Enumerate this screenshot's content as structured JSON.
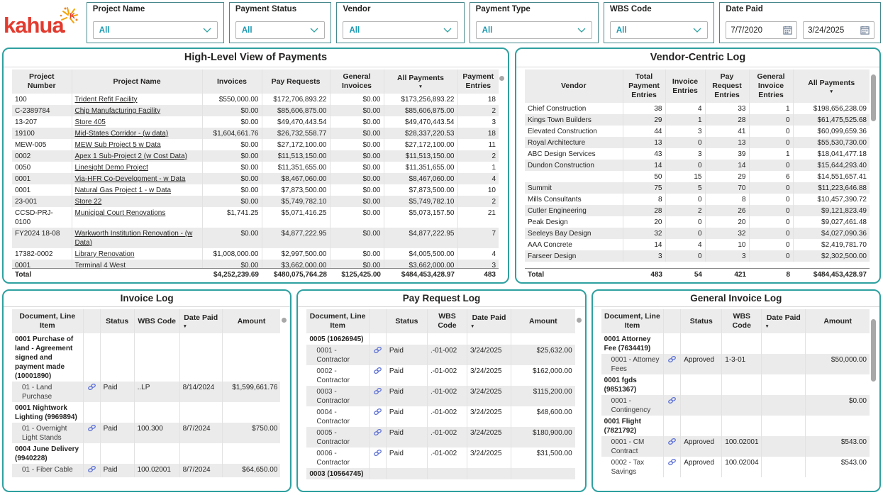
{
  "brand": {
    "logo_text": "kahua"
  },
  "colors": {
    "accent_teal": "#2FA0A0",
    "value_teal": "#1899B2",
    "link_blue": "#5B6FD6",
    "logo_red": "#E23A2E",
    "logo_orange": "#F5A300"
  },
  "filters": {
    "project_name": {
      "label": "Project Name",
      "value": "All"
    },
    "payment_status": {
      "label": "Payment Status",
      "value": "All"
    },
    "vendor": {
      "label": "Vendor",
      "value": "All"
    },
    "payment_type": {
      "label": "Payment Type",
      "value": "All"
    },
    "wbs_code": {
      "label": "WBS Code",
      "value": "All"
    },
    "date_paid": {
      "label": "Date Paid",
      "start": "7/7/2020",
      "end": "3/24/2025"
    }
  },
  "high_level": {
    "title": "High-Level View of Payments",
    "columns": [
      "Project Number",
      "Project Name",
      "Invoices",
      "Pay Requests",
      "General Invoices",
      "All Payments",
      "Payment Entries"
    ],
    "rows": [
      [
        "100",
        "Trident Refit Facility",
        "$550,000.00",
        "$172,706,893.22",
        "$0.00",
        "$173,256,893.22",
        "18"
      ],
      [
        "C-2389784",
        "Chip Manufacturing Facility",
        "$0.00",
        "$85,606,875.00",
        "$0.00",
        "$85,606,875.00",
        "2"
      ],
      [
        "13-207",
        "Store 405",
        "$0.00",
        "$49,470,443.54",
        "$0.00",
        "$49,470,443.54",
        "3"
      ],
      [
        "19100",
        "Mid-States Corridor - (w data)",
        "$1,604,661.76",
        "$26,732,558.77",
        "$0.00",
        "$28,337,220.53",
        "18"
      ],
      [
        "MEW-005",
        "MEW Sub Project 5 w Data",
        "$0.00",
        "$27,172,100.00",
        "$0.00",
        "$27,172,100.00",
        "11"
      ],
      [
        "0002",
        "Apex 1 Sub-Project 2 (w Cost Data)",
        "$0.00",
        "$11,513,150.00",
        "$0.00",
        "$11,513,150.00",
        "2"
      ],
      [
        "0050",
        "Linesight Demo Project",
        "$0.00",
        "$11,351,655.00",
        "$0.00",
        "$11,351,655.00",
        "1"
      ],
      [
        "0001",
        "Via-HFR Co-Development - w Data",
        "$0.00",
        "$8,467,060.00",
        "$0.00",
        "$8,467,060.00",
        "4"
      ],
      [
        "0001",
        "Natural Gas Project 1 - w Data",
        "$0.00",
        "$7,873,500.00",
        "$0.00",
        "$7,873,500.00",
        "10"
      ],
      [
        "23-001",
        "Store 22",
        "$0.00",
        "$5,749,782.10",
        "$0.00",
        "$5,749,782.10",
        "2"
      ],
      [
        "CCSD-PRJ-0100",
        "Municipal Court Renovations",
        "$1,741.25",
        "$5,071,416.25",
        "$0.00",
        "$5,073,157.50",
        "21"
      ],
      [
        "FY2024 18-08",
        "Warkworth Institution Renovation - (w Data)",
        "$0.00",
        "$4,877,222.95",
        "$0.00",
        "$4,877,222.95",
        "7"
      ],
      [
        "17382-0002",
        "Library Renovation",
        "$1,008,000.00",
        "$2,997,500.00",
        "$0.00",
        "$4,005,500.00",
        "4"
      ],
      [
        "0001",
        "Terminal 4 West",
        "$0.00",
        "$3,662,000.00",
        "$0.00",
        "$3,662,000.00",
        "3"
      ]
    ],
    "total": [
      "Total",
      "",
      "$4,252,239.69",
      "$480,075,764.28",
      "$125,425.00",
      "$484,453,428.97",
      "483"
    ]
  },
  "vendor_log": {
    "title": "Vendor-Centric Log",
    "columns": [
      "Vendor",
      "Total Payment Entries",
      "Invoice Entries",
      "Pay Request Entries",
      "General Invoice Entries",
      "All Payments"
    ],
    "rows": [
      [
        "Chief Construction",
        "38",
        "4",
        "33",
        "1",
        "$198,656,238.09"
      ],
      [
        "Kings Town Builders",
        "29",
        "1",
        "28",
        "0",
        "$61,475,525.68"
      ],
      [
        "Elevated Construction",
        "44",
        "3",
        "41",
        "0",
        "$60,099,659.36"
      ],
      [
        "Royal Architecture",
        "13",
        "0",
        "13",
        "0",
        "$55,530,730.00"
      ],
      [
        "ABC Design Services",
        "43",
        "3",
        "39",
        "1",
        "$18,041,477.18"
      ],
      [
        "Dundon Construction",
        "14",
        "0",
        "14",
        "0",
        "$15,644,293.40"
      ],
      [
        "",
        "50",
        "15",
        "29",
        "6",
        "$14,551,657.41"
      ],
      [
        "Summit",
        "75",
        "5",
        "70",
        "0",
        "$11,223,646.88"
      ],
      [
        "Mills Consultants",
        "8",
        "0",
        "8",
        "0",
        "$10,457,390.72"
      ],
      [
        "Cutler Engineering",
        "28",
        "2",
        "26",
        "0",
        "$9,121,823.49"
      ],
      [
        "Peak Design",
        "20",
        "0",
        "20",
        "0",
        "$9,027,461.48"
      ],
      [
        "Seeleys Bay Design",
        "32",
        "0",
        "32",
        "0",
        "$4,027,090.36"
      ],
      [
        "AAA Concrete",
        "14",
        "4",
        "10",
        "0",
        "$2,419,781.70"
      ],
      [
        "Farseer Design",
        "3",
        "0",
        "3",
        "0",
        "$2,302,500.00"
      ]
    ],
    "total": [
      "Total",
      "483",
      "54",
      "421",
      "8",
      "$484,453,428.97"
    ]
  },
  "invoice_log": {
    "title": "Invoice Log",
    "columns": [
      "Document, Line Item",
      "",
      "Status",
      "WBS Code",
      "Date Paid",
      "Amount"
    ],
    "rows": [
      {
        "t": "g",
        "c": [
          "0001 Purchase of land - Agreement signed and payment made (10001890)",
          "",
          "",
          "",
          "",
          ""
        ]
      },
      {
        "t": "d",
        "c": [
          "01 - Land Purchase",
          "link-icon",
          "Paid",
          "..LP",
          "8/14/2024",
          "$1,599,661.76"
        ]
      },
      {
        "t": "g",
        "c": [
          "0001 Nightwork Lighting (9969894)",
          "",
          "",
          "",
          "",
          ""
        ]
      },
      {
        "t": "d",
        "c": [
          "01 - Overnight Light Stands",
          "link-icon",
          "Paid",
          "100.300",
          "8/7/2024",
          "$750.00"
        ]
      },
      {
        "t": "g",
        "c": [
          "0004 June Delivery (9940228)",
          "",
          "",
          "",
          "",
          ""
        ]
      },
      {
        "t": "d",
        "c": [
          "01 - Fiber Cable",
          "link-icon",
          "Paid",
          "100.02001",
          "8/7/2024",
          "$64,650.00"
        ]
      }
    ]
  },
  "pay_request_log": {
    "title": "Pay Request Log",
    "columns": [
      "Document, Line Item",
      "",
      "Status",
      "WBS Code",
      "Date Paid",
      "Amount"
    ],
    "rows": [
      {
        "t": "g",
        "c": [
          "0005 (10626945)",
          "",
          "",
          "",
          "",
          ""
        ]
      },
      {
        "t": "d",
        "c": [
          "0001 - Contractor",
          "link-icon",
          "Paid",
          ".-01-002",
          "3/24/2025",
          "$25,632.00"
        ]
      },
      {
        "t": "d",
        "c": [
          "0002 - Contractor",
          "link-icon",
          "Paid",
          ".-01-002",
          "3/24/2025",
          "$162,000.00"
        ]
      },
      {
        "t": "d",
        "c": [
          "0003 - Contractor",
          "link-icon",
          "Paid",
          ".-01-002",
          "3/24/2025",
          "$115,200.00"
        ]
      },
      {
        "t": "d",
        "c": [
          "0004 - Contractor",
          "link-icon",
          "Paid",
          ".-01-002",
          "3/24/2025",
          "$48,600.00"
        ]
      },
      {
        "t": "d",
        "c": [
          "0005 - Contractor",
          "link-icon",
          "Paid",
          ".-01-002",
          "3/24/2025",
          "$180,900.00"
        ]
      },
      {
        "t": "d",
        "c": [
          "0006 - Contractor",
          "link-icon",
          "Paid",
          ".-01-002",
          "3/24/2025",
          "$31,500.00"
        ]
      },
      {
        "t": "g",
        "c": [
          "0003 (10564745)",
          "",
          "",
          "",
          "",
          ""
        ]
      }
    ]
  },
  "general_invoice_log": {
    "title": "General Invoice Log",
    "columns": [
      "Document, Line Item",
      "",
      "Status",
      "WBS Code",
      "Date Paid",
      "Amount"
    ],
    "rows": [
      {
        "t": "g",
        "c": [
          "0001 Attorney Fee (7634419)",
          "",
          "",
          "",
          "",
          ""
        ]
      },
      {
        "t": "d",
        "c": [
          "0001 - Attorney Fees",
          "link-icon",
          "Approved",
          "1-3-01",
          "",
          "$50,000.00"
        ]
      },
      {
        "t": "g",
        "c": [
          "0001 fgds (9851367)",
          "",
          "",
          "",
          "",
          ""
        ]
      },
      {
        "t": "d",
        "c": [
          "0001 - Contingency",
          "link-icon",
          "",
          "",
          "",
          "$0.00"
        ]
      },
      {
        "t": "g",
        "c": [
          "0001 Flight (7821792)",
          "",
          "",
          "",
          "",
          ""
        ]
      },
      {
        "t": "d",
        "c": [
          "0001 - CM Contract",
          "link-icon",
          "Approved",
          "100.02001",
          "",
          "$543.00"
        ]
      },
      {
        "t": "d",
        "c": [
          "0002 - Tax Savings",
          "link-icon",
          "Approved",
          "100.02004",
          "",
          "$543.00"
        ]
      }
    ]
  }
}
